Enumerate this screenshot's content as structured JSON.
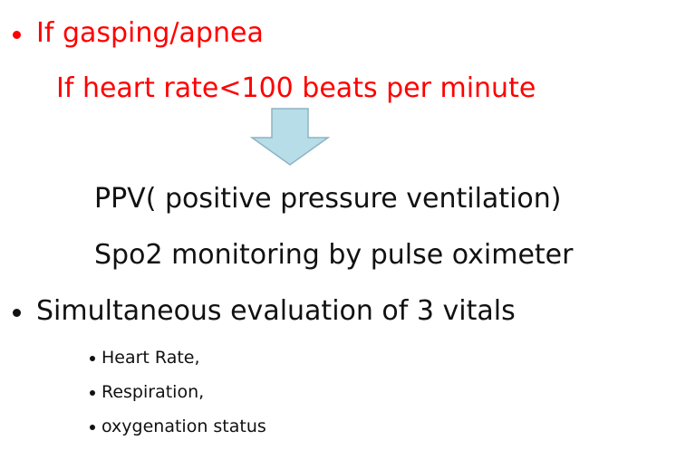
{
  "slide": {
    "top_bullet": "If gasping/apnea",
    "condition": "If heart rate<100 beats per minute",
    "actions": [
      "PPV( positive pressure ventilation)",
      "Spo2 monitoring by pulse oximeter"
    ],
    "main_bullet": "Simultaneous evaluation of 3 vitals",
    "vitals": [
      "Heart Rate,",
      "Respiration,",
      "oxygenation status"
    ]
  }
}
